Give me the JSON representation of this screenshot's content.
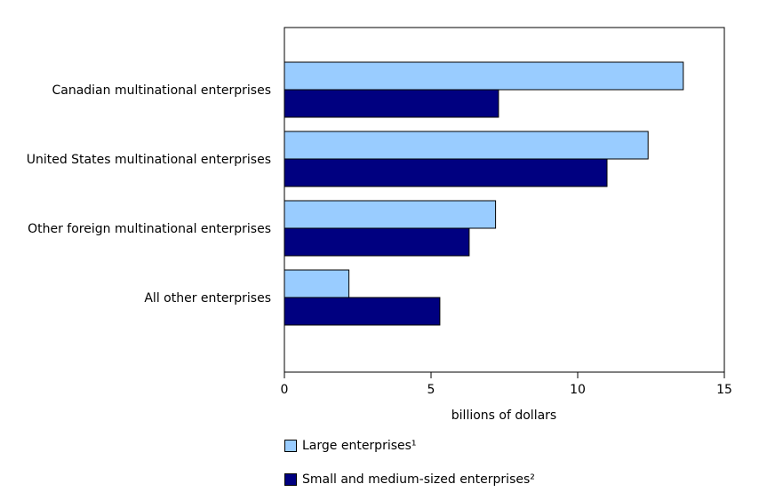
{
  "chart_data": {
    "type": "bar",
    "orientation": "horizontal",
    "categories": [
      "Canadian multinational enterprises",
      "United States multinational enterprises",
      "Other foreign multinational enterprises",
      "All other enterprises"
    ],
    "series": [
      {
        "name": "Large enterprises¹",
        "color": "#99ccff",
        "values": [
          13.6,
          12.4,
          7.2,
          2.2
        ]
      },
      {
        "name": "Small and medium-sized enterprises²",
        "color": "#000080",
        "values": [
          7.3,
          11.0,
          6.3,
          5.3
        ]
      }
    ],
    "xlabel": "billions of dollars",
    "xlim": [
      0,
      15
    ],
    "xticks": [
      0,
      5,
      10,
      15
    ],
    "grid": false,
    "legend_position": "bottom"
  }
}
